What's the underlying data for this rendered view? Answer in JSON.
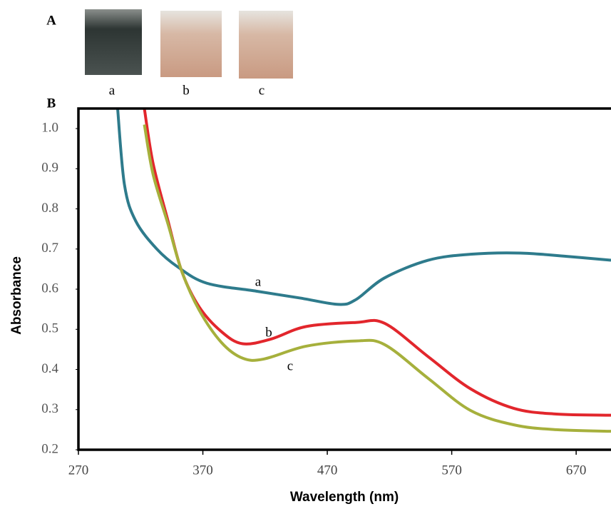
{
  "panel_a": {
    "label": "A",
    "photos": [
      "a",
      "b",
      "c"
    ]
  },
  "chart_data": {
    "type": "line",
    "panel_label": "B",
    "x_label": "Wavelength (nm)",
    "y_label": "Absorbance",
    "xlim": [
      270,
      698
    ],
    "ylim": [
      0.2,
      1.05
    ],
    "xticks": [
      270,
      370,
      470,
      570,
      670
    ],
    "yticks": [
      0.2,
      0.3,
      0.4,
      0.5,
      0.6,
      0.7,
      0.8,
      0.9,
      {
        "value": 1,
        "label": "1.0"
      }
    ],
    "grid": false,
    "series": [
      {
        "name": "a",
        "color": "#2e7b8c",
        "x": [
          301.5,
          307,
          316,
          333,
          350,
          373,
          413,
          448,
          479,
          493,
          516,
          551,
          585,
          625,
          665,
          698
        ],
        "values": [
          1.05,
          0.86,
          0.77,
          0.7,
          0.655,
          0.615,
          0.595,
          0.578,
          0.562,
          0.574,
          0.628,
          0.672,
          0.687,
          0.69,
          0.681,
          0.672
        ]
      },
      {
        "name": "b",
        "color": "#e2262c",
        "x": [
          323,
          330,
          342,
          353,
          367,
          385,
          402,
          425,
          453,
          493,
          516,
          551,
          585,
          620,
          654,
          698
        ],
        "values": [
          1.05,
          0.913,
          0.77,
          0.645,
          0.556,
          0.494,
          0.464,
          0.476,
          0.507,
          0.517,
          0.515,
          0.432,
          0.352,
          0.303,
          0.289,
          0.286
        ]
      },
      {
        "name": "c",
        "color": "#a6b03c",
        "x": [
          323,
          330,
          342,
          353,
          367,
          385,
          402,
          419,
          453,
          493,
          516,
          551,
          585,
          620,
          654,
          698
        ],
        "values": [
          1.01,
          0.886,
          0.762,
          0.645,
          0.548,
          0.467,
          0.428,
          0.426,
          0.458,
          0.471,
          0.462,
          0.378,
          0.298,
          0.262,
          0.25,
          0.246
        ]
      }
    ]
  }
}
